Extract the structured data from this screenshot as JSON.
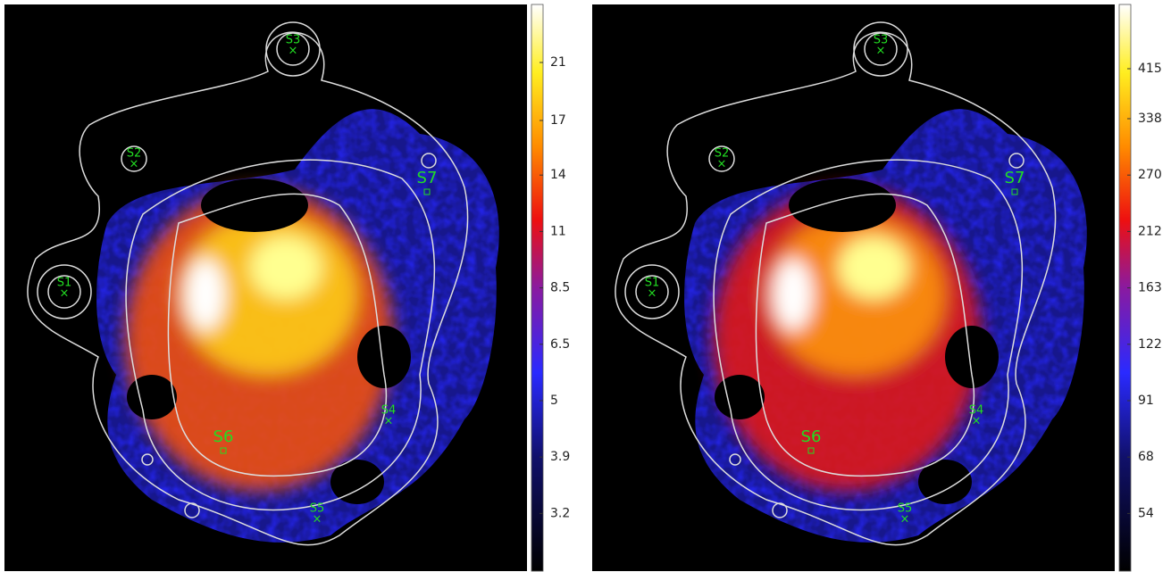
{
  "panels": [
    {
      "colorbar_ticks": [
        21,
        17,
        14,
        11,
        8.5,
        6.5,
        5,
        3.9,
        3.2
      ],
      "sources": [
        "S1",
        "S2",
        "S3",
        "S4",
        "S5",
        "S6",
        "S7"
      ]
    },
    {
      "colorbar_ticks": [
        415,
        338,
        270,
        212,
        163,
        122,
        91,
        68,
        54
      ],
      "sources": [
        "S1",
        "S2",
        "S3",
        "S4",
        "S5",
        "S6",
        "S7"
      ]
    }
  ]
}
